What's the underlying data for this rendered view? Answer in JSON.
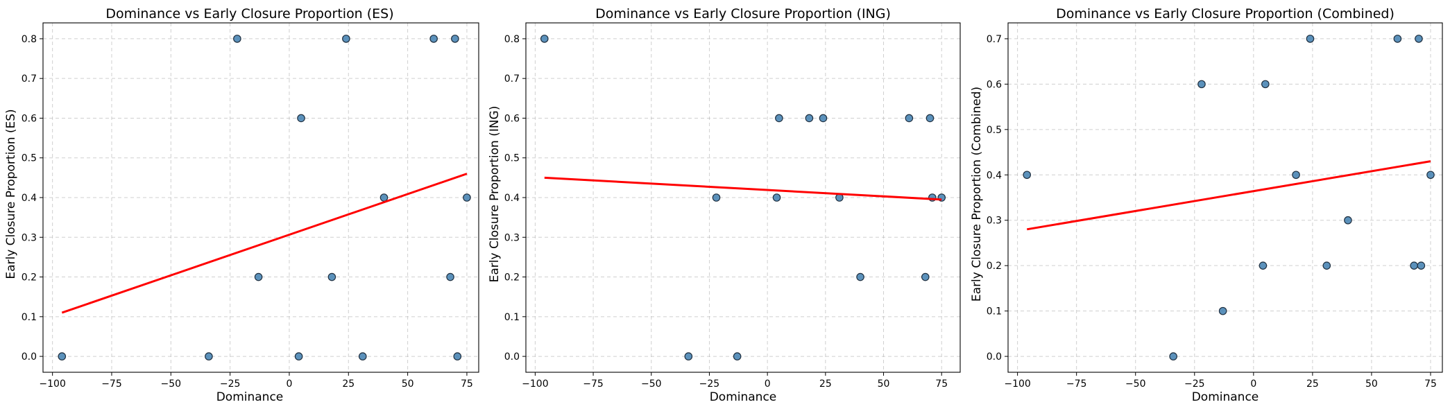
{
  "chart_data": [
    {
      "type": "scatter",
      "title": "Dominance vs Early Closure Proportion (ES)",
      "xlabel": "Dominance",
      "ylabel": "Early Closure Proportion (ES)",
      "xlim": [
        -104,
        80
      ],
      "ylim": [
        -0.04,
        0.84
      ],
      "xticks": [
        -100,
        -75,
        -50,
        -25,
        0,
        25,
        50,
        75
      ],
      "yticks": [
        0.0,
        0.1,
        0.2,
        0.3,
        0.4,
        0.5,
        0.6,
        0.7,
        0.8
      ],
      "grid": true,
      "x": [
        -96,
        -34,
        -22,
        -13,
        4,
        5,
        18,
        24,
        31,
        40,
        61,
        68,
        70,
        71,
        75
      ],
      "y": [
        0.0,
        0.0,
        0.8,
        0.2,
        0.0,
        0.6,
        0.2,
        0.8,
        0.0,
        0.4,
        0.8,
        0.2,
        0.8,
        0.0,
        0.4
      ],
      "fit_line": {
        "x": [
          -96,
          75
        ],
        "y": [
          0.11,
          0.46
        ]
      },
      "colors": {
        "points": "#3f7fb0",
        "fit": "#ff0000"
      }
    },
    {
      "type": "scatter",
      "title": "Dominance vs Early Closure Proportion (ING)",
      "xlabel": "Dominance",
      "ylabel": "Early Closure Proportion (ING)",
      "xlim": [
        -104,
        83
      ],
      "ylim": [
        -0.04,
        0.84
      ],
      "xticks": [
        -100,
        -75,
        -50,
        -25,
        0,
        25,
        50,
        75
      ],
      "yticks": [
        0.0,
        0.1,
        0.2,
        0.3,
        0.4,
        0.5,
        0.6,
        0.7,
        0.8
      ],
      "grid": true,
      "x": [
        -96,
        -34,
        -22,
        -13,
        4,
        5,
        18,
        24,
        31,
        40,
        61,
        68,
        70,
        71,
        75
      ],
      "y": [
        0.8,
        0.0,
        0.4,
        0.0,
        0.4,
        0.6,
        0.6,
        0.6,
        0.4,
        0.2,
        0.6,
        0.2,
        0.6,
        0.4,
        0.4
      ],
      "fit_line": {
        "x": [
          -96,
          75
        ],
        "y": [
          0.45,
          0.395
        ]
      },
      "colors": {
        "points": "#3f7fb0",
        "fit": "#ff0000"
      }
    },
    {
      "type": "scatter",
      "title": "Dominance vs Early Closure Proportion (Combined)",
      "xlabel": "Dominance",
      "ylabel": "Early Closure Proportion (Combined)",
      "xlim": [
        -104,
        80
      ],
      "ylim": [
        -0.035,
        0.735
      ],
      "xticks": [
        -100,
        -75,
        -50,
        -25,
        0,
        25,
        50,
        75
      ],
      "yticks": [
        0.0,
        0.1,
        0.2,
        0.3,
        0.4,
        0.5,
        0.6,
        0.7
      ],
      "grid": true,
      "x": [
        -96,
        -34,
        -22,
        -13,
        4,
        5,
        18,
        24,
        31,
        40,
        61,
        68,
        70,
        71,
        75
      ],
      "y": [
        0.4,
        0.0,
        0.6,
        0.1,
        0.2,
        0.6,
        0.4,
        0.7,
        0.2,
        0.3,
        0.7,
        0.2,
        0.7,
        0.2,
        0.4
      ],
      "fit_line": {
        "x": [
          -96,
          75
        ],
        "y": [
          0.28,
          0.43
        ]
      },
      "colors": {
        "points": "#3f7fb0",
        "fit": "#ff0000"
      }
    }
  ]
}
